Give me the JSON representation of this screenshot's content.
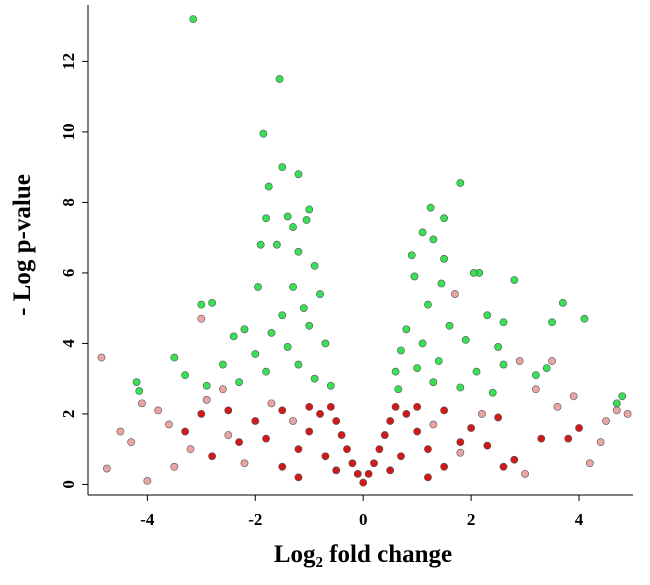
{
  "chart_data": {
    "type": "scatter",
    "x_label": "Log₂ fold change",
    "y_label": "- Log p-value",
    "xlim": [
      -5.1,
      5.0
    ],
    "ylim": [
      -0.3,
      13.6
    ],
    "xticks": [
      -4,
      -2,
      0,
      2,
      4
    ],
    "yticks": [
      0,
      2,
      4,
      6,
      8,
      10,
      12
    ],
    "series": [
      {
        "color": "#e89a9a",
        "x": [
          -4.85,
          -4.75,
          -4.0,
          -4.5,
          -4.3,
          -3.8,
          -3.6,
          -3.2,
          -2.9,
          -2.6,
          -2.2,
          -2.5,
          -1.7,
          -3.5,
          -4.1,
          -3.0,
          4.2,
          4.7,
          4.5,
          3.6,
          3.9,
          3.0,
          2.9,
          3.2,
          1.7,
          3.5,
          2.2,
          4.4,
          1.8,
          -1.3,
          1.3,
          4.9
        ],
        "values": [
          3.6,
          0.45,
          0.1,
          1.5,
          1.2,
          2.1,
          1.7,
          1.0,
          2.4,
          2.7,
          0.6,
          1.4,
          2.3,
          0.5,
          2.3,
          4.7,
          0.6,
          2.1,
          1.8,
          2.2,
          2.5,
          0.3,
          3.5,
          2.7,
          5.4,
          3.5,
          2.0,
          1.2,
          0.9,
          1.8,
          1.7,
          2.0
        ]
      },
      {
        "color": "#cc0000",
        "x": [
          0,
          -0.1,
          0.1,
          -0.2,
          0.2,
          -0.3,
          0.3,
          -0.4,
          0.4,
          -0.5,
          0.5,
          -0.6,
          0.6,
          -0.8,
          0.8,
          -1.0,
          1.0,
          -1.2,
          1.2,
          -1.5,
          1.5,
          -0.7,
          0.7,
          -1.0,
          1.0,
          -1.5,
          1.5,
          -2.0,
          2.0,
          -2.3,
          2.3,
          -2.8,
          2.8,
          -3.3,
          3.3,
          -1.8,
          1.8,
          -0.5,
          0.5,
          -2.5,
          2.5,
          4.0,
          -3.0,
          3.8,
          2.6,
          -1.2,
          1.2
        ],
        "values": [
          0.05,
          0.3,
          0.3,
          0.6,
          0.6,
          1.0,
          1.0,
          1.4,
          1.4,
          1.8,
          1.8,
          2.2,
          2.2,
          2.0,
          2.0,
          1.5,
          1.5,
          1.0,
          1.0,
          0.5,
          0.5,
          0.8,
          0.8,
          2.2,
          2.2,
          2.1,
          2.1,
          1.8,
          1.6,
          1.2,
          1.1,
          0.8,
          0.7,
          1.5,
          1.3,
          1.3,
          1.2,
          0.4,
          0.4,
          2.1,
          1.9,
          1.6,
          2.0,
          1.3,
          0.5,
          0.2,
          0.2
        ]
      },
      {
        "color": "#22dd44",
        "x": [
          -3.15,
          -1.55,
          -1.85,
          -1.5,
          -1.75,
          -1.2,
          -1.8,
          -1.4,
          -1.0,
          -1.05,
          -1.3,
          -1.9,
          -1.6,
          -1.2,
          -0.9,
          -1.3,
          -1.95,
          -3.0,
          -2.8,
          -1.1,
          -0.8,
          -1.5,
          -2.2,
          -2.4,
          -1.7,
          -1.0,
          -0.7,
          -1.4,
          -2.0,
          -2.6,
          -3.5,
          -4.2,
          -4.15,
          -3.3,
          -2.9,
          -1.8,
          -1.2,
          -0.6,
          -0.9,
          -2.3,
          1.8,
          1.25,
          1.5,
          1.1,
          1.3,
          0.9,
          1.5,
          2.15,
          2.05,
          0.95,
          1.45,
          2.8,
          3.7,
          4.1,
          3.5,
          1.2,
          2.3,
          2.6,
          0.8,
          1.6,
          0.7,
          1.1,
          1.9,
          2.5,
          0.6,
          1.0,
          1.4,
          2.1,
          2.6,
          3.2,
          3.4,
          4.8,
          4.7,
          0.65,
          1.3,
          1.8,
          2.4
        ],
        "values": [
          13.2,
          11.5,
          9.95,
          9.0,
          8.45,
          8.8,
          7.55,
          7.6,
          7.8,
          7.5,
          7.3,
          6.8,
          6.8,
          6.6,
          6.2,
          5.6,
          5.6,
          5.1,
          5.15,
          5.0,
          5.4,
          4.8,
          4.4,
          4.2,
          4.3,
          4.5,
          4.0,
          3.9,
          3.7,
          3.4,
          3.6,
          2.9,
          2.65,
          3.1,
          2.8,
          3.2,
          3.4,
          2.8,
          3.0,
          2.9,
          8.55,
          7.85,
          7.55,
          7.15,
          6.95,
          6.5,
          6.4,
          6.0,
          6.0,
          5.9,
          5.7,
          5.8,
          5.15,
          4.7,
          4.6,
          5.1,
          4.8,
          4.6,
          4.4,
          4.5,
          3.8,
          4.0,
          4.1,
          3.9,
          3.2,
          3.3,
          3.5,
          3.2,
          3.4,
          3.1,
          3.3,
          2.5,
          2.3,
          2.7,
          2.9,
          2.75,
          2.6
        ]
      }
    ]
  }
}
